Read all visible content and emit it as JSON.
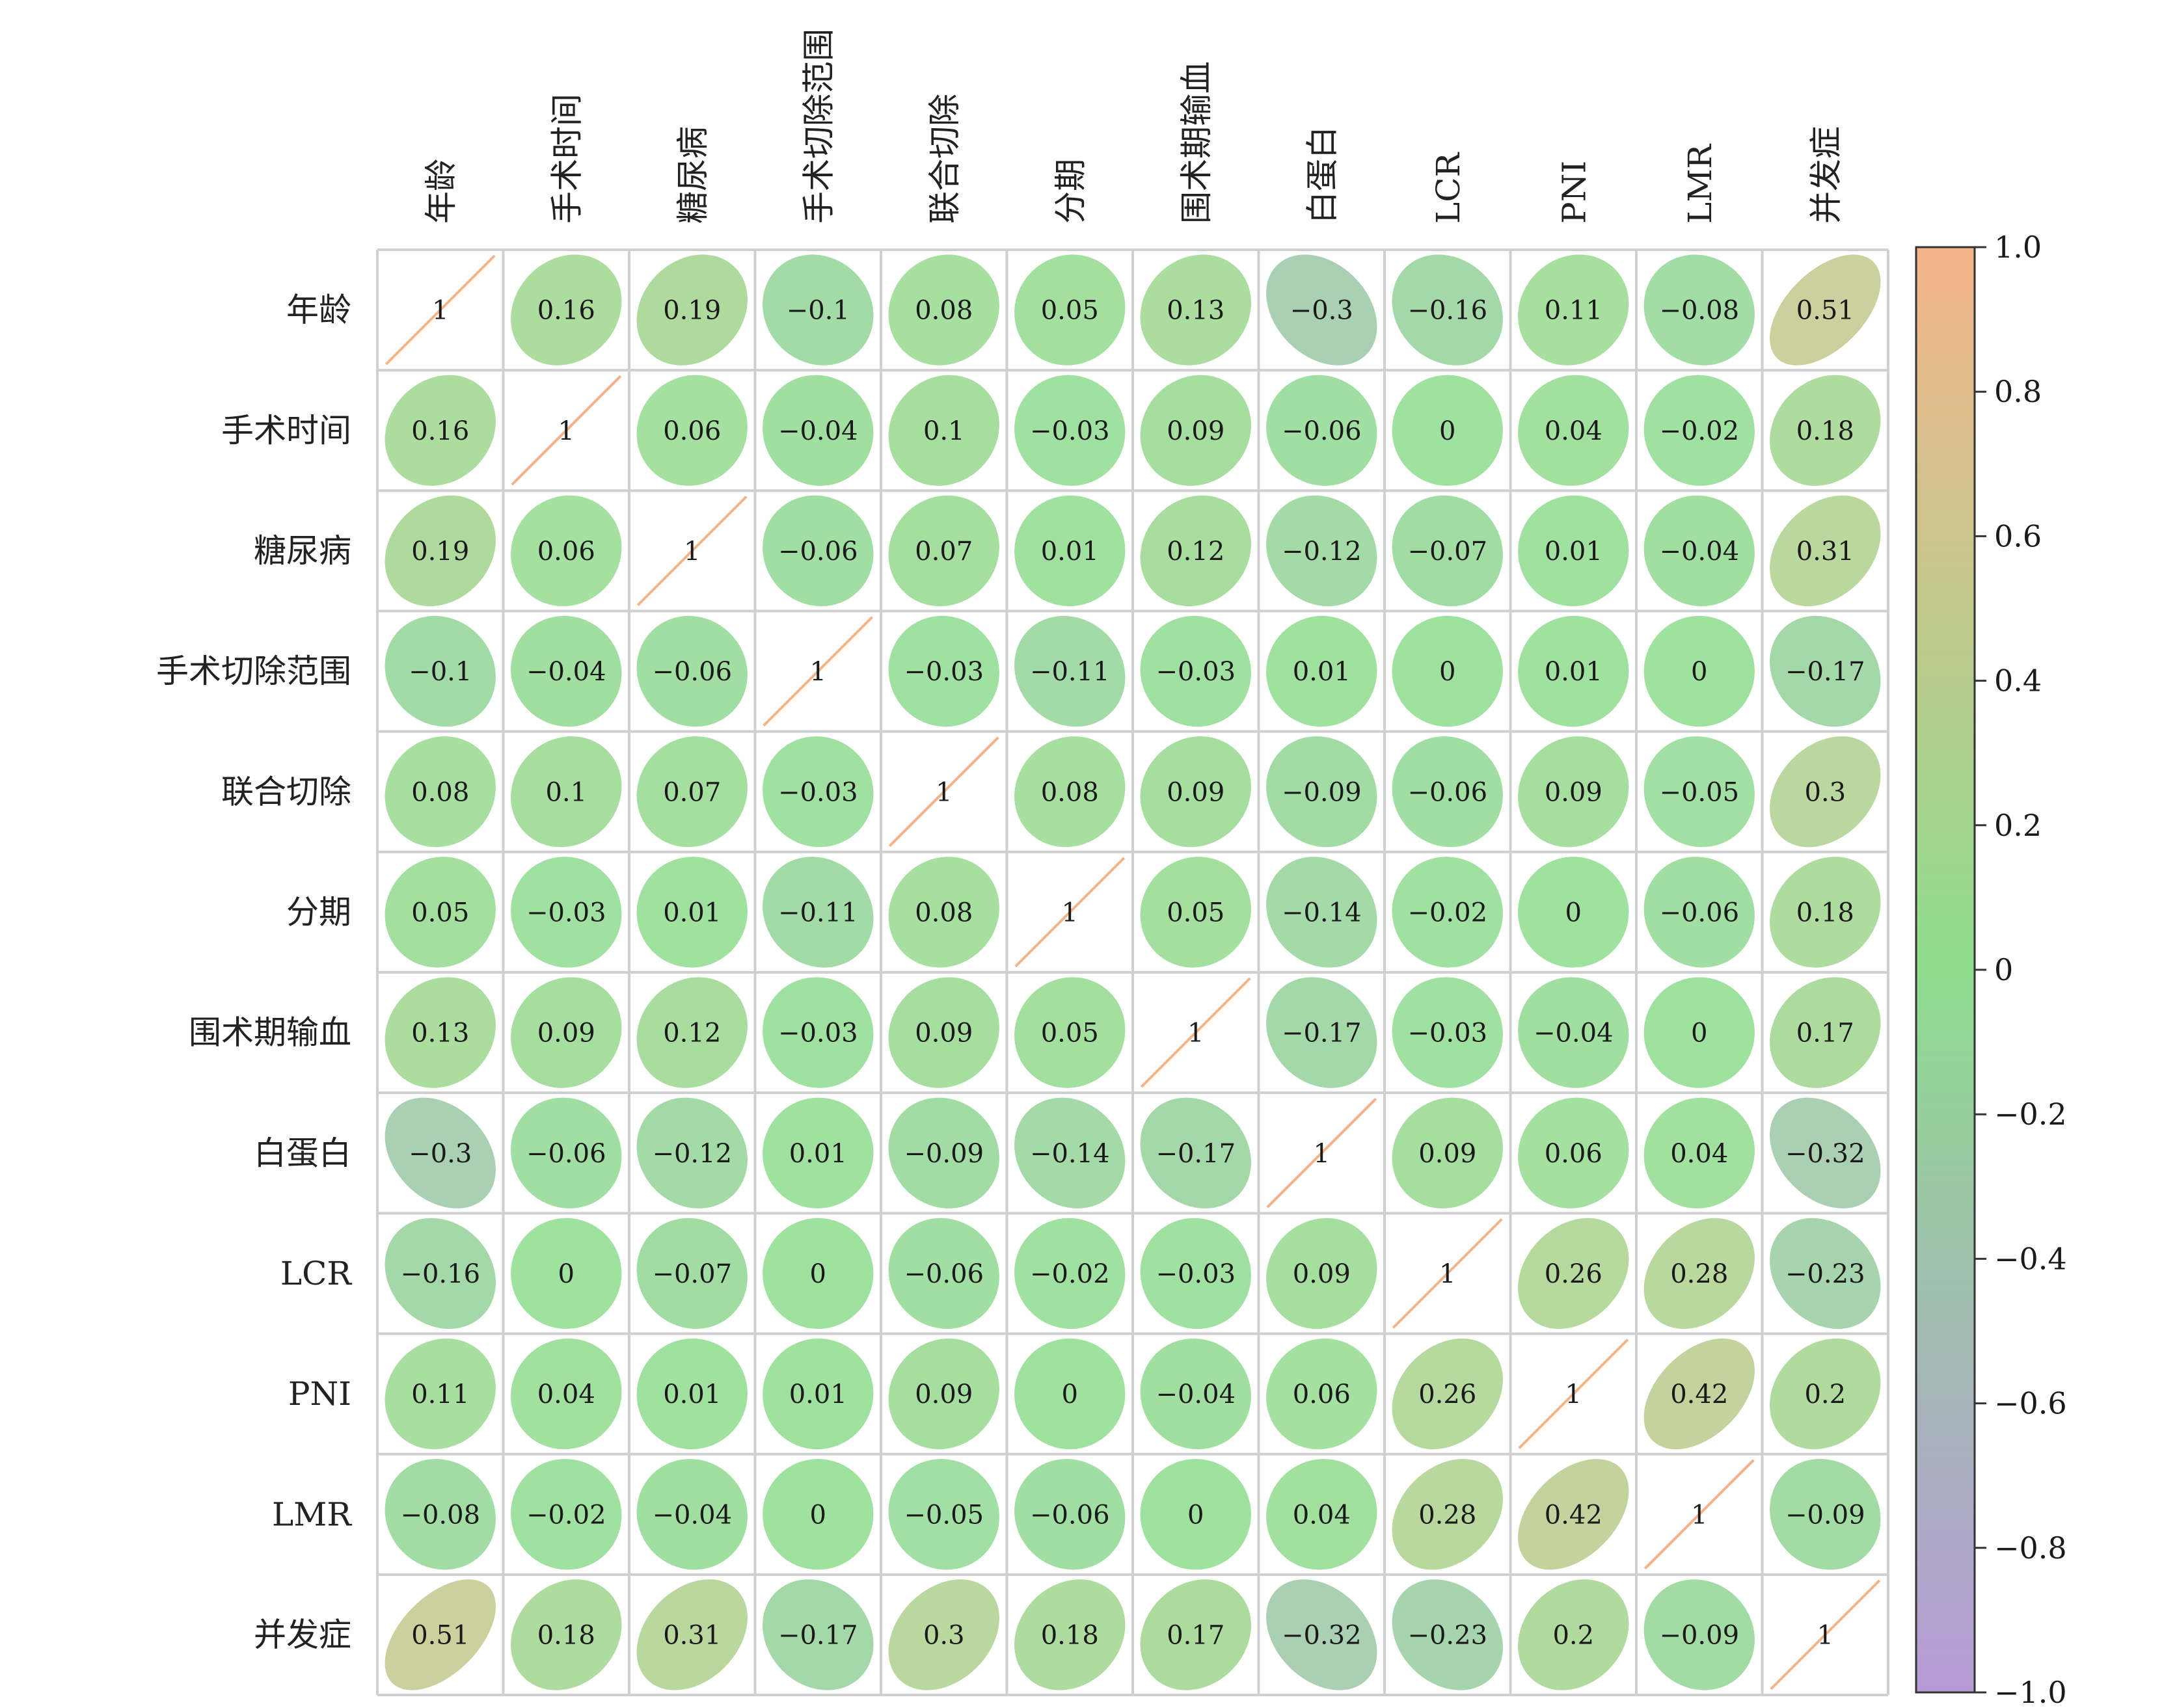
{
  "chart_data": {
    "type": "heatmap",
    "subtype": "correlation-ellipse-matrix",
    "labels": [
      "年龄",
      "手术时间",
      "糖尿病",
      "手术切除范围",
      "联合切除",
      "分期",
      "围术期输血",
      "白蛋白",
      "LCR",
      "PNI",
      "LMR",
      "并发症"
    ],
    "matrix": [
      [
        "1",
        "0.16",
        "0.19",
        "−0.1",
        "0.08",
        "0.05",
        "0.13",
        "−0.3",
        "−0.16",
        "0.11",
        "−0.08",
        "0.51"
      ],
      [
        "0.16",
        "1",
        "0.06",
        "−0.04",
        "0.1",
        "−0.03",
        "0.09",
        "−0.06",
        "0",
        "0.04",
        "−0.02",
        "0.18"
      ],
      [
        "0.19",
        "0.06",
        "1",
        "−0.06",
        "0.07",
        "0.01",
        "0.12",
        "−0.12",
        "−0.07",
        "0.01",
        "−0.04",
        "0.31"
      ],
      [
        "−0.1",
        "−0.04",
        "−0.06",
        "1",
        "−0.03",
        "−0.11",
        "−0.03",
        "0.01",
        "0",
        "0.01",
        "0",
        "−0.17"
      ],
      [
        "0.08",
        "0.1",
        "0.07",
        "−0.03",
        "1",
        "0.08",
        "0.09",
        "−0.09",
        "−0.06",
        "0.09",
        "−0.05",
        "0.3"
      ],
      [
        "0.05",
        "−0.03",
        "0.01",
        "−0.11",
        "0.08",
        "1",
        "0.05",
        "−0.14",
        "−0.02",
        "0",
        "−0.06",
        "0.18"
      ],
      [
        "0.13",
        "0.09",
        "0.12",
        "−0.03",
        "0.09",
        "0.05",
        "1",
        "−0.17",
        "−0.03",
        "−0.04",
        "0",
        "0.17"
      ],
      [
        "−0.3",
        "−0.06",
        "−0.12",
        "0.01",
        "−0.09",
        "−0.14",
        "−0.17",
        "1",
        "0.09",
        "0.06",
        "0.04",
        "−0.32"
      ],
      [
        "−0.16",
        "0",
        "−0.07",
        "0",
        "−0.06",
        "−0.02",
        "−0.03",
        "0.09",
        "1",
        "0.26",
        "0.28",
        "−0.23"
      ],
      [
        "0.11",
        "0.04",
        "0.01",
        "0.01",
        "0.09",
        "0",
        "−0.04",
        "0.06",
        "0.26",
        "1",
        "0.42",
        "0.2"
      ],
      [
        "−0.08",
        "−0.02",
        "−0.04",
        "0",
        "−0.05",
        "−0.06",
        "0",
        "0.04",
        "0.28",
        "0.42",
        "1",
        "−0.09"
      ],
      [
        "0.51",
        "0.18",
        "0.31",
        "−0.17",
        "0.3",
        "0.18",
        "0.17",
        "−0.32",
        "−0.23",
        "0.2",
        "−0.09",
        "1"
      ]
    ],
    "colorbar": {
      "range": [
        -1.0,
        1.0
      ],
      "ticks": [
        "1.0",
        "0.8",
        "0.6",
        "0.4",
        "0.2",
        "0",
        "−0.2",
        "−0.4",
        "−0.6",
        "−0.8",
        "−1.0"
      ],
      "colors": {
        "positive": "#f4b48a",
        "zero": "#8edc8e",
        "negative": "#b69ad6"
      }
    },
    "grid_color": "#cfcfcf"
  }
}
